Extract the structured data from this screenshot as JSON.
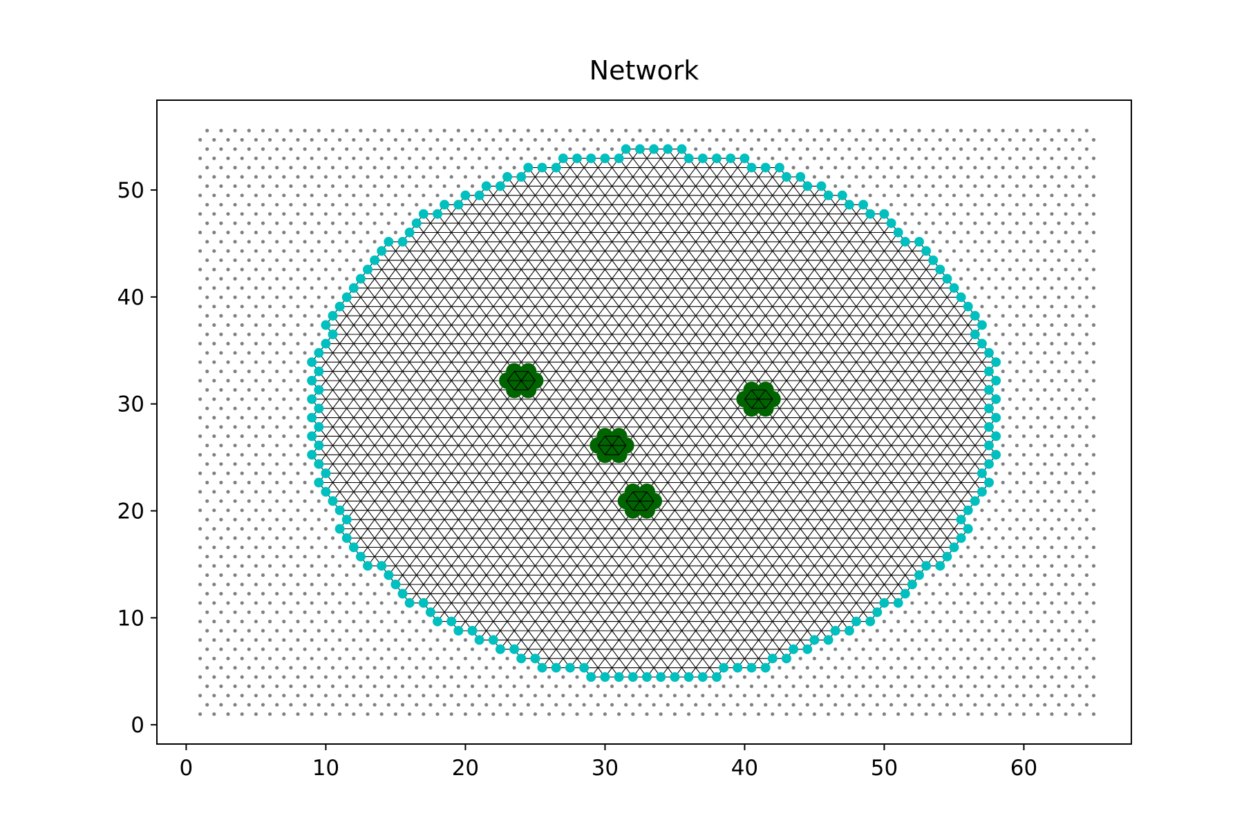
{
  "chart_data": {
    "type": "scatter",
    "title": "Network",
    "xlabel": "",
    "ylabel": "",
    "xlim": [
      -2.1,
      67.7
    ],
    "ylim": [
      -1.8,
      58.4
    ],
    "xticks": [
      0,
      10,
      20,
      30,
      40,
      50,
      60
    ],
    "yticks": [
      0,
      10,
      20,
      30,
      40,
      50
    ],
    "grid": false,
    "legend": false,
    "lattice": {
      "description_type": "triangular",
      "spacing": 1,
      "x_range": [
        1,
        64.5
      ],
      "y_range": [
        1.0,
        55.6
      ],
      "row_step": 0.866
    },
    "network_region": {
      "shape": "circle",
      "center": [
        33.5,
        29.0
      ],
      "radius": 25.0
    },
    "clusters": [
      {
        "center": [
          24.4,
          32.2
        ]
      },
      {
        "center": [
          31.0,
          26.0
        ]
      },
      {
        "center": [
          33.0,
          21.0
        ]
      },
      {
        "center": [
          41.5,
          30.5
        ]
      }
    ],
    "colors": {
      "background_nodes": "#808080",
      "network_edges": "#000000",
      "boundary_nodes": "#00bfbf",
      "cluster_nodes": "#006400",
      "axes": "#000000"
    }
  }
}
